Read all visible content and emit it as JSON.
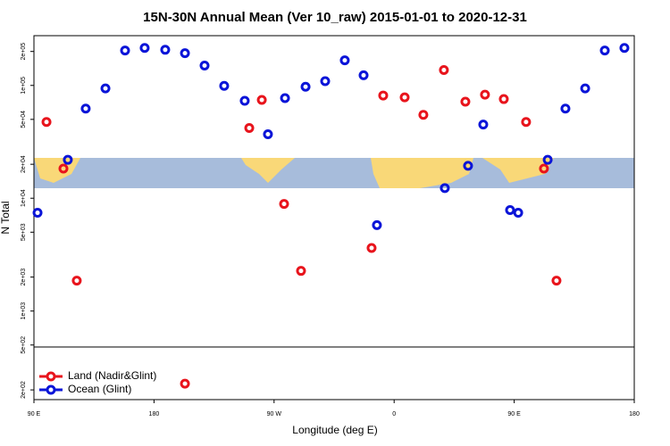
{
  "chart_data": {
    "type": "scatter",
    "title": "15N-30N Annual Mean (Ver 10_raw)   2015-01-01 to 2020-12-31",
    "x_label": "Longitude (deg E)",
    "y_label": "N Total",
    "xlim": [
      90,
      540
    ],
    "xticks": [
      {
        "value": 90,
        "label": "90 E"
      },
      180,
      {
        "value": 270,
        "label": "90 W"
      },
      {
        "value": 360,
        "label": "0"
      },
      {
        "value": 450,
        "label": "90 E"
      },
      {
        "value": 540,
        "label": "180"
      }
    ],
    "ylim": [
      164,
      276000
    ],
    "log_y": true,
    "yticks": [
      {
        "value": 200,
        "label": "2e+02"
      },
      {
        "value": 500,
        "label": "5e+02"
      },
      {
        "value": 1000,
        "label": "1e+03"
      },
      {
        "value": 2000,
        "label": "2e+03"
      },
      {
        "value": 5000,
        "label": "5e+03"
      },
      {
        "value": 10000,
        "label": "1e+04"
      },
      {
        "value": 20000,
        "label": "2e+04"
      },
      {
        "value": 50000,
        "label": "5e+04"
      },
      {
        "value": 100000,
        "label": "1e+05"
      },
      {
        "value": 200000,
        "label": "2e+05"
      }
    ],
    "legend": "lower left",
    "series": [
      {
        "name": "Land (Nadir&Glint)",
        "color": "#e8141c",
        "x": [
          99.4,
          112.1,
          122.1,
          203.2,
          251.4,
          260.8,
          277.5,
          290.2,
          343.1,
          351.8,
          367.9,
          381.9,
          397.3,
          413.4,
          428.1,
          442.2,
          458.9,
          472.3,
          481.7
        ],
        "values": [
          47400,
          18300,
          1860,
          227,
          41900,
          74400,
          8900,
          2270,
          3620,
          81400,
          78400,
          54900,
          137000,
          71800,
          82800,
          75700,
          47400,
          18300,
          1860
        ]
      },
      {
        "name": "Ocean (Glint)",
        "color": "#0a14d8",
        "x": [
          92.7,
          115.4,
          128.8,
          143.6,
          158.3,
          173.0,
          188.4,
          203.2,
          217.9,
          232.6,
          248.0,
          265.4,
          278.2,
          293.6,
          308.3,
          323.0,
          337.1,
          347.1,
          398.0,
          415.4,
          426.8,
          446.9,
          453.0,
          475.1,
          488.4,
          503.2,
          517.9,
          532.6
        ],
        "values": [
          7430,
          21900,
          62300,
          94000,
          204000,
          215000,
          207000,
          193000,
          150000,
          99100,
          73000,
          36900,
          77200,
          97400,
          109000,
          167000,
          123000,
          5780,
          12300,
          19400,
          45000,
          7850,
          7430,
          21900,
          62300,
          94000,
          204000,
          215000
        ]
      }
    ]
  }
}
